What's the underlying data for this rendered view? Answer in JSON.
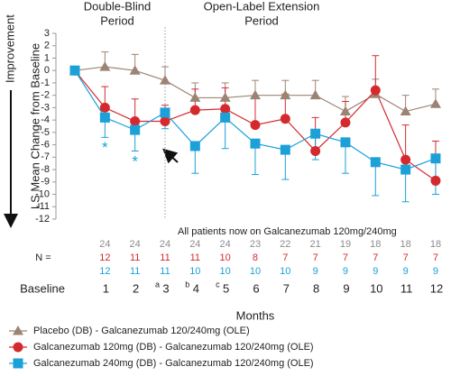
{
  "chart_data": {
    "type": "line",
    "ylabel": "LS Mean Change from Baseline",
    "direction_label": "Improvement",
    "xlabel": "Months",
    "period_labels": [
      [
        "Double-Blind",
        "Period"
      ],
      [
        "Open-Label Extension",
        "Period"
      ]
    ],
    "annotation": "All patients now on Galcanezumab 120mg/240mg",
    "categories": [
      "Baseline",
      "1",
      "2",
      "3",
      "4",
      "5",
      "6",
      "7",
      "8",
      "9",
      "10",
      "11",
      "12"
    ],
    "x_superscripts": [
      null,
      null,
      null,
      "a",
      "b",
      "c",
      null,
      null,
      null,
      null,
      null,
      null,
      null
    ],
    "ylim": [
      -12,
      3
    ],
    "yticks": [
      3,
      2,
      1,
      0,
      -1,
      -2,
      -3,
      -4,
      -5,
      -6,
      -7,
      -8,
      -9,
      -10,
      -11,
      -12
    ],
    "n_label": "N =",
    "series": [
      {
        "name": "Placebo (DB) - Galcanezumab 120/240mg (OLE)",
        "color": "#9c8474",
        "marker": "triangle",
        "error_direction": "up",
        "values": [
          0,
          0.3,
          0,
          -0.8,
          -2.2,
          -2.2,
          -2,
          -2,
          -2,
          -3.3,
          -1.9,
          -3.3,
          -2.7
        ],
        "errors": [
          null,
          1.2,
          1.3,
          1.1,
          1.2,
          1.2,
          1.2,
          1.2,
          1.2,
          1.2,
          1.2,
          1.3,
          1.2
        ],
        "n": [
          24,
          24,
          24,
          24,
          24,
          23,
          22,
          21,
          19,
          18,
          18,
          18
        ],
        "n_color": "#8c8c8c"
      },
      {
        "name": "Galcanezumab 120mg (DB) - Galcanezumab 120/240mg (OLE)",
        "color": "#d42a2f",
        "marker": "circle",
        "error_direction": "up",
        "values": [
          0,
          -3,
          -4.1,
          -4.1,
          -3.2,
          -3.1,
          -4.4,
          -3.9,
          -6.5,
          -4.2,
          -1.6,
          -7.2,
          -8.9
        ],
        "errors": [
          null,
          1.7,
          1.8,
          1.3,
          1.7,
          1.7,
          2.2,
          2,
          2.7,
          1.7,
          2.8,
          2.8,
          3.2
        ],
        "n": [
          12,
          11,
          11,
          11,
          10,
          8,
          7,
          7,
          7,
          7,
          7,
          7
        ],
        "n_color": "#d42a2f"
      },
      {
        "name": "Galcanezumab 240mg (DB) - Galcanezumab 120/240mg (OLE)",
        "color": "#1ba0d8",
        "marker": "square",
        "error_direction": "down",
        "values": [
          0,
          -3.8,
          -4.8,
          -3.4,
          -6.1,
          -3.8,
          -5.9,
          -6.4,
          -5.1,
          -5.8,
          -7.4,
          -8,
          -7.1
        ],
        "errors": [
          null,
          1.6,
          1.7,
          1.3,
          2.2,
          2.5,
          2.5,
          2.4,
          2.1,
          2.5,
          2.7,
          2.6,
          2.9
        ],
        "significance_marks": [
          null,
          "*",
          "*",
          null,
          null,
          null,
          null,
          null,
          null,
          null,
          null,
          null,
          null
        ],
        "n": [
          12,
          11,
          11,
          10,
          10,
          10,
          10,
          9,
          9,
          9,
          9,
          9
        ],
        "n_color": "#1ba0d8"
      }
    ]
  }
}
